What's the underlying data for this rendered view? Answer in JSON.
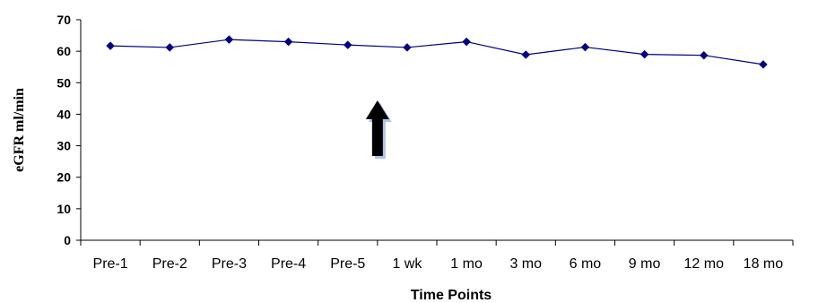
{
  "chart_data": {
    "type": "line",
    "title": "",
    "xlabel": "Time Points",
    "ylabel": "eGFR ml/min",
    "categories": [
      "Pre-1",
      "Pre-2",
      "Pre-3",
      "Pre-4",
      "Pre-5",
      "1 wk",
      "1 mo",
      "3 mo",
      "6 mo",
      "9 mo",
      "12 mo",
      "18 mo"
    ],
    "series": [
      {
        "values": [
          61.7,
          61.2,
          63.7,
          63.0,
          62.0,
          61.2,
          63.0,
          58.9,
          61.3,
          59.0,
          58.7,
          55.8
        ]
      }
    ],
    "ylim": [
      0,
      70
    ],
    "yticks": [
      0,
      10,
      20,
      30,
      40,
      50,
      60,
      70
    ],
    "grid": false,
    "legend": "none",
    "series_color": "#000080",
    "annotation": {
      "type": "arrow",
      "direction": "up",
      "at_category": "1 wk"
    }
  }
}
